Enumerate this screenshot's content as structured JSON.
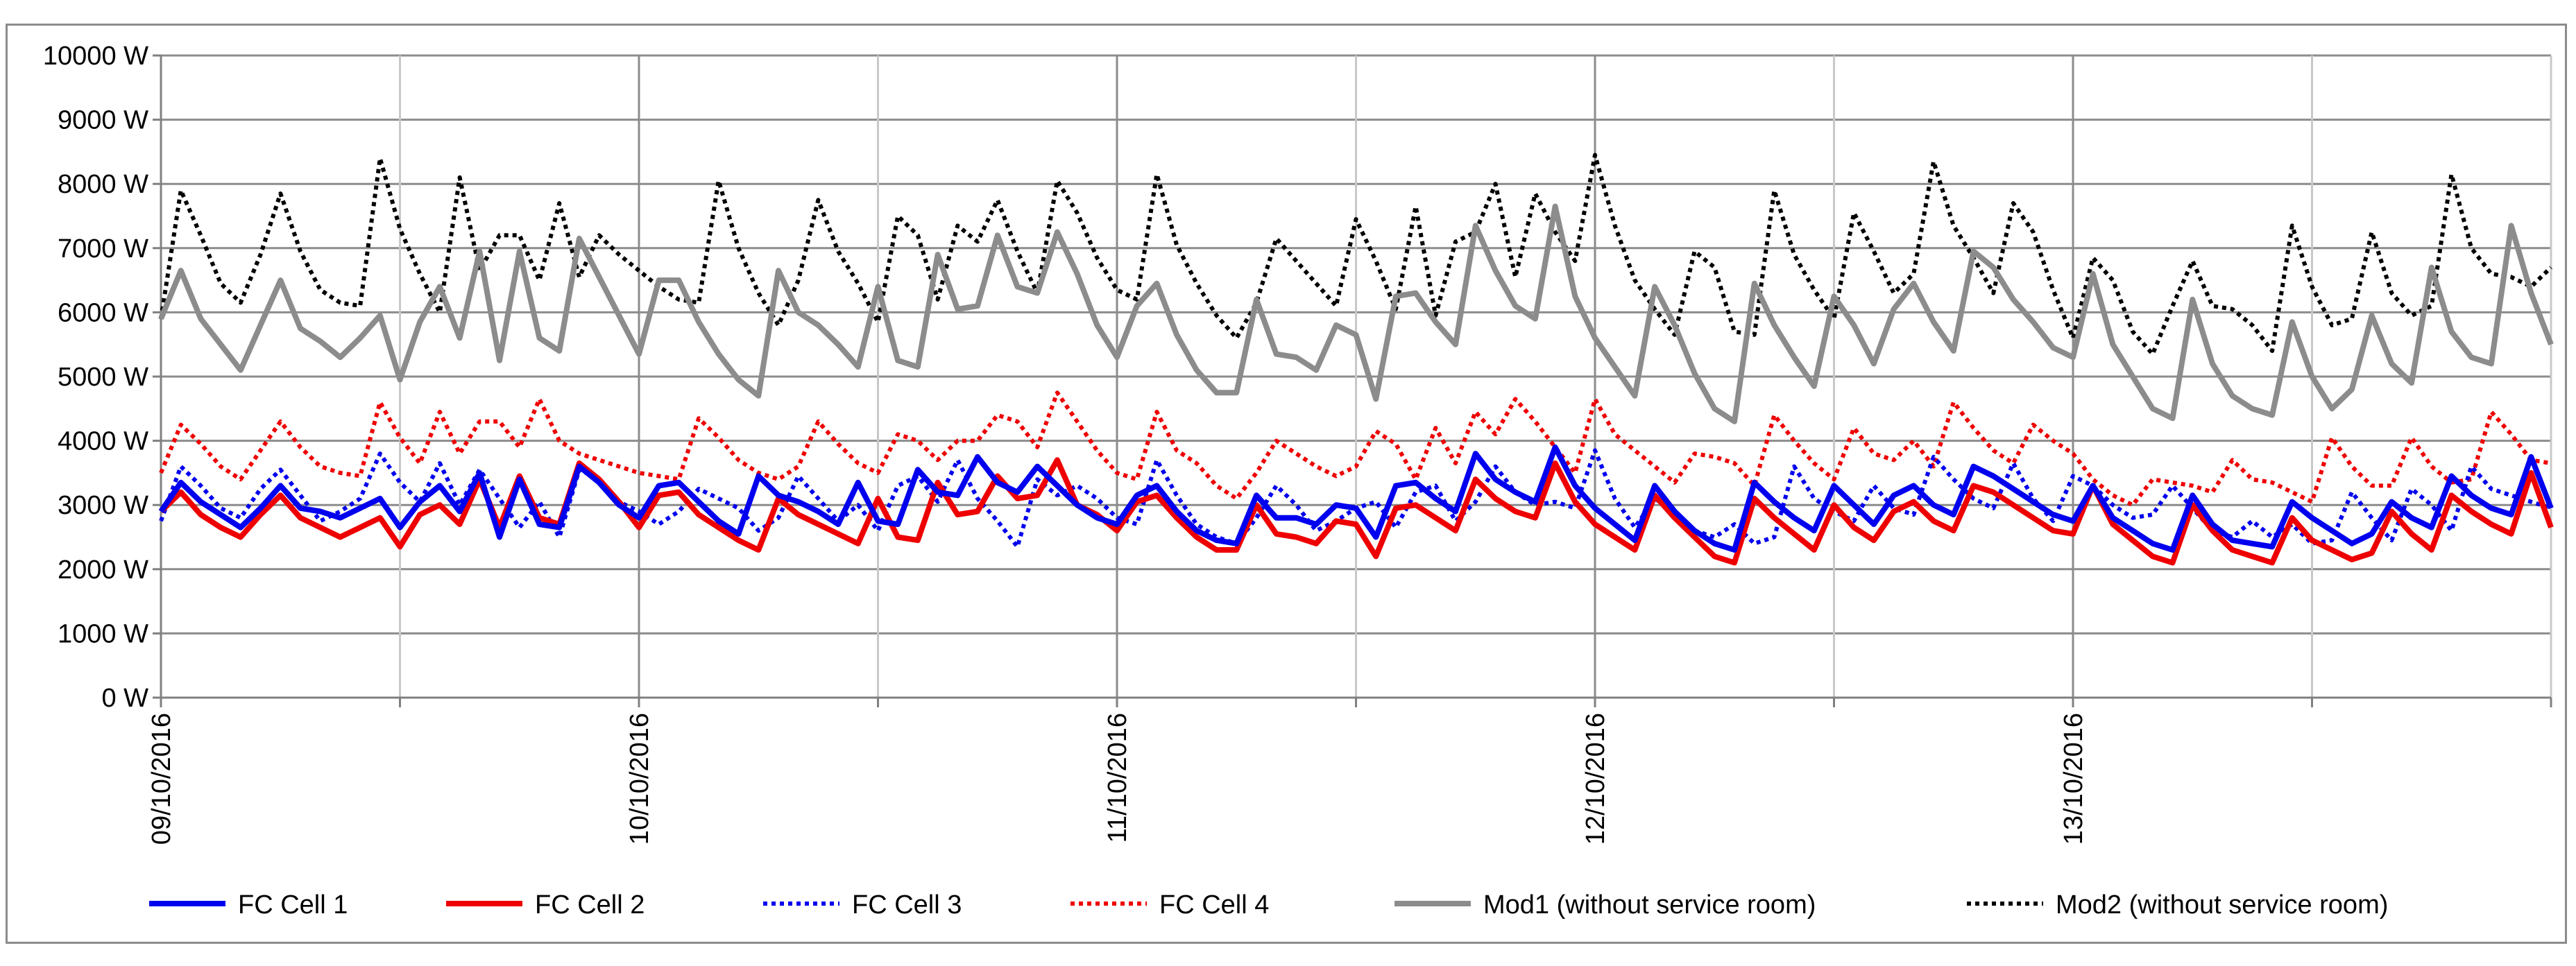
{
  "chart_data": {
    "type": "line",
    "title": "",
    "xlabel": "",
    "ylabel": "",
    "ylim": [
      0,
      10000
    ],
    "yticks": [
      0,
      1000,
      2000,
      3000,
      4000,
      5000,
      6000,
      7000,
      8000,
      9000,
      10000
    ],
    "ytick_labels": [
      "0 W",
      "1000 W",
      "2000 W",
      "3000 W",
      "4000 W",
      "5000 W",
      "6000 W",
      "7000 W",
      "8000 W",
      "9000 W",
      "10000 W"
    ],
    "x_unit": "hours since 09/10/2016 00:00",
    "xlim": [
      0,
      120
    ],
    "x_major_ticks": [
      0,
      24,
      48,
      72,
      96
    ],
    "x_major_labels": [
      "09/10/2016",
      "10/10/2016",
      "11/10/2016",
      "12/10/2016",
      "13/10/2016"
    ],
    "x_minor_gridlines": [
      12,
      36,
      60,
      84,
      108
    ],
    "grid": true,
    "legend_position": "bottom",
    "x": [
      0,
      1,
      2,
      3,
      4,
      5,
      6,
      7,
      8,
      9,
      10,
      11,
      12,
      13,
      14,
      15,
      16,
      17,
      18,
      19,
      20,
      21,
      22,
      23,
      24,
      25,
      26,
      27,
      28,
      29,
      30,
      31,
      32,
      33,
      34,
      35,
      36,
      37,
      38,
      39,
      40,
      41,
      42,
      43,
      44,
      45,
      46,
      47,
      48,
      49,
      50,
      51,
      52,
      53,
      54,
      55,
      56,
      57,
      58,
      59,
      60,
      61,
      62,
      63,
      64,
      65,
      66,
      67,
      68,
      69,
      70,
      71,
      72,
      73,
      74,
      75,
      76,
      77,
      78,
      79,
      80,
      81,
      82,
      83,
      84,
      85,
      86,
      87,
      88,
      89,
      90,
      91,
      92,
      93,
      94,
      95,
      96,
      97,
      98,
      99,
      100,
      101,
      102,
      103,
      104,
      105,
      106,
      107,
      108,
      109,
      110,
      111,
      112,
      113,
      114,
      115,
      116,
      117,
      118,
      119,
      120
    ],
    "series": [
      {
        "name": "FC Cell 1",
        "color": "#0000ee",
        "dash": "solid",
        "width": 8,
        "values": [
          2900,
          3350,
          3050,
          2850,
          2650,
          2950,
          3300,
          2950,
          2900,
          2800,
          2950,
          3100,
          2650,
          3050,
          3300,
          2900,
          3500,
          2500,
          3400,
          2700,
          2650,
          3600,
          3350,
          3000,
          2800,
          3300,
          3350,
          3050,
          2750,
          2550,
          3450,
          3150,
          3050,
          2900,
          2700,
          3350,
          2750,
          2700,
          3550,
          3200,
          3150,
          3750,
          3350,
          3200,
          3600,
          3300,
          3000,
          2800,
          2700,
          3150,
          3300,
          2900,
          2600,
          2450,
          2400,
          3150,
          2800,
          2800,
          2700,
          3000,
          2950,
          2500,
          3300,
          3350,
          3100,
          2900,
          3800,
          3400,
          3200,
          3050,
          3900,
          3300,
          2950,
          2700,
          2450,
          3300,
          2900,
          2600,
          2400,
          2300,
          3350,
          3050,
          2800,
          2600,
          3300,
          3000,
          2700,
          3150,
          3300,
          3000,
          2850,
          3600,
          3450,
          3250,
          3050,
          2850,
          2750,
          3300,
          2800,
          2600,
          2400,
          2300,
          3150,
          2700,
          2450,
          2400,
          2350,
          3050,
          2800,
          2600,
          2400,
          2550,
          3050,
          2800,
          2650,
          3450,
          3150,
          2950,
          2850,
          3750,
          2950
        ]
      },
      {
        "name": "FC Cell 2",
        "color": "#ee0000",
        "dash": "solid",
        "width": 8,
        "values": [
          2900,
          3200,
          2850,
          2650,
          2500,
          2850,
          3150,
          2800,
          2650,
          2500,
          2650,
          2800,
          2350,
          2850,
          3000,
          2700,
          3400,
          2650,
          3450,
          2800,
          2700,
          3650,
          3400,
          3050,
          2650,
          3150,
          3200,
          2850,
          2650,
          2450,
          2300,
          3100,
          2850,
          2700,
          2550,
          2400,
          3100,
          2500,
          2450,
          3350,
          2850,
          2900,
          3450,
          3100,
          3150,
          3700,
          3000,
          2850,
          2600,
          3050,
          3150,
          2800,
          2500,
          2300,
          2300,
          3000,
          2550,
          2500,
          2400,
          2750,
          2700,
          2200,
          2950,
          3000,
          2800,
          2600,
          3400,
          3100,
          2900,
          2800,
          3650,
          3050,
          2700,
          2500,
          2300,
          3150,
          2800,
          2500,
          2200,
          2100,
          3100,
          2800,
          2550,
          2300,
          3000,
          2650,
          2450,
          2900,
          3050,
          2750,
          2600,
          3300,
          3200,
          3000,
          2800,
          2600,
          2550,
          3300,
          2700,
          2450,
          2200,
          2100,
          3000,
          2600,
          2300,
          2200,
          2100,
          2800,
          2450,
          2300,
          2150,
          2250,
          2900,
          2550,
          2300,
          3150,
          2900,
          2700,
          2550,
          3500,
          2650
        ]
      },
      {
        "name": "FC Cell 3",
        "color": "#0000ee",
        "dash": "dotted",
        "width": 6,
        "values": [
          2750,
          3600,
          3300,
          2950,
          2800,
          3250,
          3550,
          3150,
          2750,
          2900,
          3100,
          3800,
          3350,
          3050,
          3650,
          3000,
          3550,
          3100,
          2650,
          3050,
          2500,
          3550,
          3400,
          3050,
          2900,
          2700,
          2900,
          3250,
          3100,
          2950,
          2600,
          2800,
          3450,
          3100,
          2750,
          3000,
          2600,
          3300,
          3450,
          3050,
          3700,
          3100,
          2750,
          2350,
          3400,
          3150,
          3300,
          3100,
          2800,
          2700,
          3700,
          3150,
          2700,
          2500,
          2400,
          2800,
          3300,
          3000,
          2600,
          2750,
          2950,
          3050,
          2650,
          3200,
          3300,
          2750,
          3050,
          3600,
          3200,
          3000,
          3050,
          2950,
          3850,
          3100,
          2650,
          3100,
          2900,
          2600,
          2500,
          2700,
          2400,
          2500,
          3600,
          3100,
          2900,
          2750,
          3300,
          2950,
          2850,
          3750,
          3400,
          3100,
          2950,
          3650,
          3100,
          2750,
          3450,
          3300,
          3000,
          2800,
          2850,
          3300,
          2950,
          2600,
          2500,
          2750,
          2500,
          2700,
          2400,
          2450,
          3200,
          2800,
          2450,
          3250,
          3000,
          2600,
          3600,
          3250,
          3150,
          3050,
          2950
        ]
      },
      {
        "name": "FC Cell 4",
        "color": "#ee0000",
        "dash": "dotted",
        "width": 6,
        "values": [
          3500,
          4250,
          3950,
          3600,
          3400,
          3850,
          4300,
          3900,
          3600,
          3500,
          3450,
          4600,
          4050,
          3650,
          4450,
          3800,
          4300,
          4300,
          3900,
          4650,
          4000,
          3800,
          3700,
          3600,
          3500,
          3450,
          3400,
          4350,
          4050,
          3700,
          3500,
          3400,
          3600,
          4300,
          3950,
          3650,
          3500,
          4100,
          4000,
          3700,
          4000,
          4000,
          4400,
          4300,
          3900,
          4750,
          4300,
          3850,
          3500,
          3400,
          4450,
          3850,
          3650,
          3300,
          3100,
          3500,
          4000,
          3800,
          3600,
          3450,
          3600,
          4150,
          3950,
          3400,
          4200,
          3650,
          4450,
          4100,
          4650,
          4300,
          3900,
          3500,
          4650,
          4100,
          3850,
          3600,
          3350,
          3800,
          3750,
          3650,
          3300,
          4400,
          4000,
          3650,
          3400,
          4200,
          3800,
          3700,
          4000,
          3600,
          4600,
          4200,
          3850,
          3650,
          4250,
          4000,
          3800,
          3400,
          3150,
          3000,
          3400,
          3350,
          3300,
          3200,
          3700,
          3400,
          3350,
          3200,
          3050,
          4050,
          3600,
          3300,
          3300,
          4050,
          3600,
          3350,
          3400,
          4450,
          4100,
          3700,
          3650
        ]
      },
      {
        "name": "Mod1 (without service room)",
        "color": "#8c8c8c",
        "dash": "solid",
        "width": 8,
        "values": [
          5900,
          6650,
          5900,
          5500,
          5100,
          5800,
          6500,
          5750,
          5550,
          5300,
          5600,
          5950,
          4950,
          5850,
          6400,
          5600,
          6950,
          5250,
          6950,
          5600,
          5400,
          7150,
          6550,
          5950,
          5350,
          6500,
          6500,
          5850,
          5350,
          4950,
          4700,
          6650,
          6000,
          5800,
          5500,
          5150,
          6400,
          5250,
          5150,
          6900,
          6050,
          6100,
          7200,
          6400,
          6300,
          7250,
          6600,
          5800,
          5300,
          6100,
          6450,
          5650,
          5100,
          4750,
          4750,
          6200,
          5350,
          5300,
          5100,
          5800,
          5650,
          4650,
          6250,
          6300,
          5850,
          5500,
          7350,
          6650,
          6100,
          5900,
          7650,
          6250,
          5600,
          5150,
          4700,
          6400,
          5800,
          5050,
          4500,
          4300,
          6450,
          5800,
          5300,
          4850,
          6250,
          5800,
          5200,
          6050,
          6450,
          5850,
          5400,
          6950,
          6700,
          6200,
          5850,
          5450,
          5300,
          6600,
          5500,
          5000,
          4500,
          4350,
          6200,
          5200,
          4700,
          4500,
          4400,
          5850,
          5000,
          4500,
          4800,
          5950,
          5200,
          4900,
          6700,
          5700,
          5300,
          5200,
          7350,
          6300,
          5500
        ]
      },
      {
        "name": "Mod2 (without service room)",
        "color": "#000000",
        "dash": "dotted",
        "width": 6,
        "values": [
          5900,
          7900,
          7200,
          6450,
          6150,
          6900,
          7850,
          6950,
          6350,
          6150,
          6100,
          8400,
          7300,
          6600,
          6000,
          8100,
          6650,
          7200,
          7200,
          6500,
          7700,
          6550,
          7200,
          6900,
          6650,
          6400,
          6200,
          6150,
          8050,
          7000,
          6300,
          5800,
          6500,
          7750,
          6950,
          6450,
          5850,
          7500,
          7200,
          6200,
          7350,
          7100,
          7750,
          6950,
          6300,
          8050,
          7550,
          6850,
          6350,
          6200,
          8150,
          7050,
          6450,
          5950,
          5600,
          6150,
          7150,
          6800,
          6450,
          6100,
          7450,
          6800,
          6050,
          7650,
          5950,
          7100,
          7250,
          8000,
          6550,
          7850,
          7250,
          6800,
          8450,
          7350,
          6500,
          6050,
          5650,
          6950,
          6700,
          5700,
          5650,
          7900,
          6900,
          6350,
          5900,
          7550,
          6950,
          6300,
          6600,
          8350,
          7350,
          6850,
          6300,
          7700,
          7250,
          6350,
          5600,
          6850,
          6500,
          5700,
          5350,
          6100,
          6800,
          6100,
          6050,
          5800,
          5400,
          7350,
          6400,
          5800,
          5900,
          7250,
          6300,
          5950,
          6100,
          8150,
          7000,
          6600,
          6550,
          6400,
          6700
        ]
      }
    ]
  }
}
